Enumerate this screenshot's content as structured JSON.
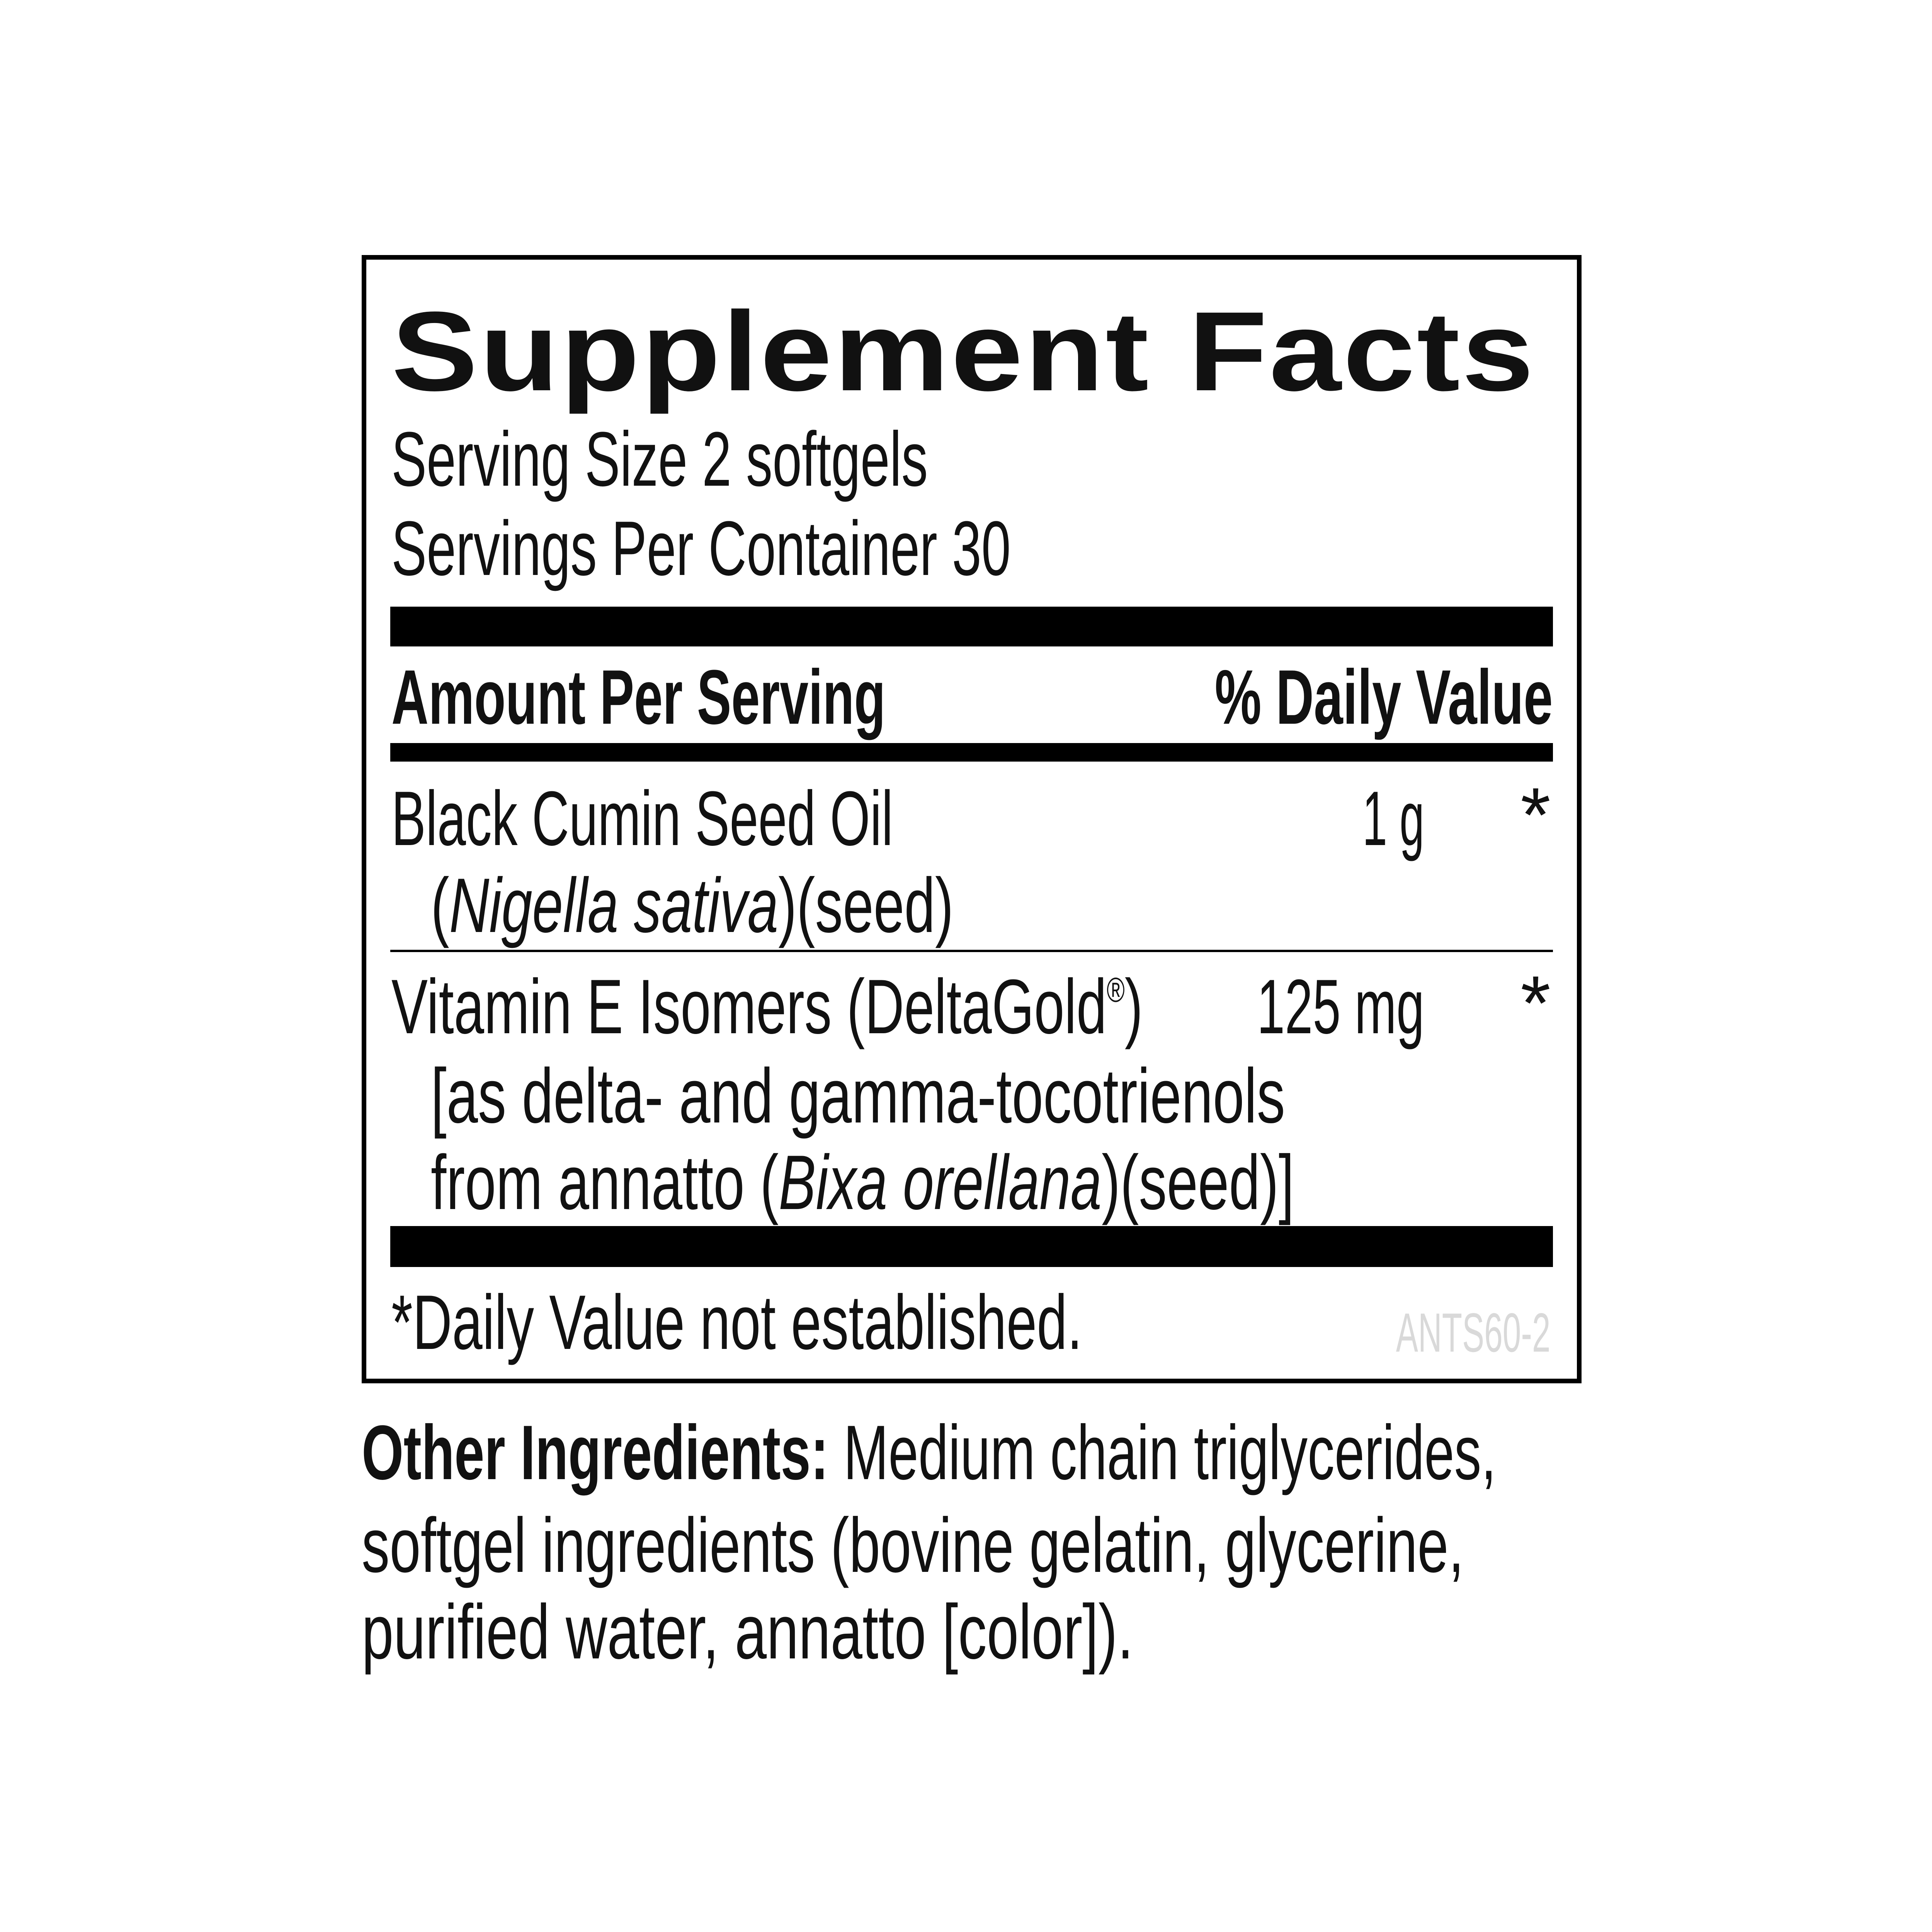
{
  "title": "Supplement Facts",
  "serving_size": "Serving Size 2 softgels",
  "servings_per_container": "Servings Per Container 30",
  "header": {
    "amount": "Amount Per Serving",
    "daily_value": "% Daily Value"
  },
  "rows": [
    {
      "name": "Black Cumin Seed Oil",
      "detail_open": "(",
      "detail_italic": "Nigella sativa",
      "detail_close": ")(seed)",
      "amount": "1 g",
      "dv": "*"
    },
    {
      "name": "Vitamin E Isomers (DeltaGold",
      "name_reg": "®",
      "name_close": ")",
      "detail_line1": "[as delta- and gamma-tocotrienols",
      "detail_line2_pre": "from annatto (",
      "detail_line2_italic": "Bixa orellana",
      "detail_line2_post": ")(seed)]",
      "amount": "125 mg",
      "dv": "*"
    }
  ],
  "footnote": "*Daily Value not established.",
  "code": "ANTS60-2",
  "other_ingredients": {
    "label": "Other Ingredients:",
    "line1": " Medium chain triglycerides,",
    "line2": "softgel ingredients (bovine gelatin, glycerine,",
    "line3": "purified water, annatto [color])."
  }
}
